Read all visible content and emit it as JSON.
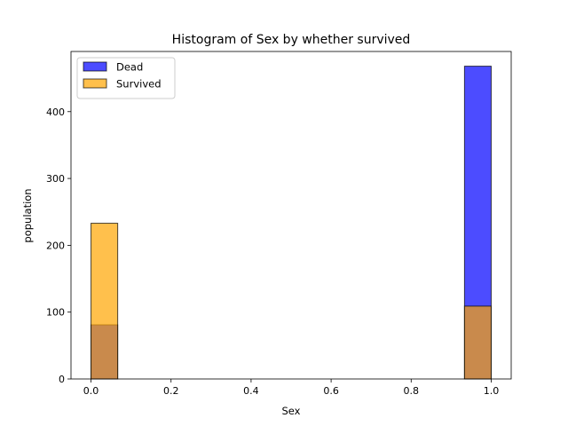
{
  "chart_data": {
    "type": "bar",
    "title": "Histogram of Sex by whether survived",
    "xlabel": "Sex",
    "ylabel": "population",
    "xlim": [
      -0.05,
      1.05
    ],
    "ylim": [
      0,
      490
    ],
    "xticks": [
      0.0,
      0.2,
      0.4,
      0.6,
      0.8,
      1.0
    ],
    "xtick_labels": [
      "0.0",
      "0.2",
      "0.4",
      "0.6",
      "0.8",
      "1.0"
    ],
    "yticks": [
      0,
      100,
      200,
      300,
      400
    ],
    "ytick_labels": [
      "0",
      "100",
      "200",
      "300",
      "400"
    ],
    "bin_width": 0.0667,
    "grid": false,
    "legend_position": "top-left",
    "series": [
      {
        "name": "Dead",
        "color": "#0000ff",
        "opacity": 0.7,
        "bins": [
          {
            "x0": 0.0,
            "x1": 0.0667,
            "value": 81
          },
          {
            "x0": 0.9333,
            "x1": 1.0,
            "value": 468
          }
        ]
      },
      {
        "name": "Survived",
        "color": "#ffa500",
        "opacity": 0.7,
        "bins": [
          {
            "x0": 0.0,
            "x1": 0.0667,
            "value": 233
          },
          {
            "x0": 0.9333,
            "x1": 1.0,
            "value": 109
          }
        ]
      }
    ]
  }
}
